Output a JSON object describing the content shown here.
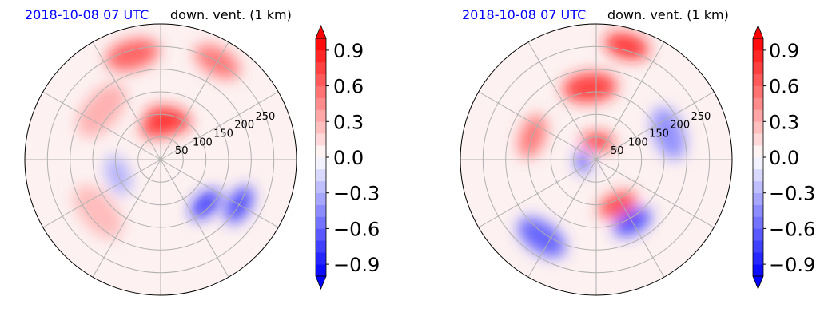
{
  "chart_data": [
    {
      "type": "heatmap",
      "projection": "polar",
      "title_date": "2018-10-08 07 UTC",
      "title_variable": "down. vent. (1 km)",
      "radial_tick_labels": [
        "50",
        "100",
        "150",
        "200",
        "250"
      ],
      "radial_ticks": [
        50,
        100,
        150,
        200,
        250
      ],
      "radial_max": 300,
      "theta_gridlines_deg": [
        0,
        30,
        60,
        90,
        120,
        150,
        180,
        210,
        240,
        270,
        300,
        330
      ],
      "grid": true,
      "colormap": "bwr",
      "color_min": "#0000ff",
      "color_mid": "#ffffff",
      "color_max": "#ff0000",
      "vmin": -1.0,
      "vmax": 1.0,
      "colorbar_ticks": [
        -0.9,
        -0.6,
        -0.3,
        0.0,
        0.3,
        0.6,
        0.9
      ],
      "colorbar_tick_labels": [
        "−0.9",
        "−0.6",
        "−0.3",
        "0.0",
        "0.3",
        "0.6",
        "0.9"
      ],
      "colorbar_extend": "both",
      "field_features": [
        {
          "theta_deg": 80,
          "r": 90,
          "spread": 50,
          "value": 0.9
        },
        {
          "theta_deg": 95,
          "r": 70,
          "spread": 40,
          "value": 0.8
        },
        {
          "theta_deg": 105,
          "r": 240,
          "spread": 60,
          "value": 0.7
        },
        {
          "theta_deg": 60,
          "r": 250,
          "spread": 55,
          "value": 0.6
        },
        {
          "theta_deg": 140,
          "r": 170,
          "spread": 70,
          "value": 0.35
        },
        {
          "theta_deg": 220,
          "r": 180,
          "spread": 70,
          "value": 0.3
        },
        {
          "theta_deg": 315,
          "r": 140,
          "spread": 40,
          "value": -0.9
        },
        {
          "theta_deg": 330,
          "r": 200,
          "spread": 45,
          "value": -0.8
        },
        {
          "theta_deg": 200,
          "r": 100,
          "spread": 45,
          "value": -0.35
        }
      ]
    },
    {
      "type": "heatmap",
      "projection": "polar",
      "title_date": "2018-10-08 07 UTC",
      "title_variable": "down. vent. (1 km)",
      "radial_tick_labels": [
        "50",
        "100",
        "150",
        "200",
        "250"
      ],
      "radial_ticks": [
        50,
        100,
        150,
        200,
        250
      ],
      "radial_max": 300,
      "theta_gridlines_deg": [
        0,
        30,
        60,
        90,
        120,
        150,
        180,
        210,
        240,
        270,
        300,
        330
      ],
      "grid": true,
      "colormap": "bwr",
      "color_min": "#0000ff",
      "color_mid": "#ffffff",
      "color_max": "#ff0000",
      "vmin": -1.0,
      "vmax": 1.0,
      "colorbar_ticks": [
        -0.9,
        -0.6,
        -0.3,
        0.0,
        0.3,
        0.6,
        0.9
      ],
      "colorbar_tick_labels": [
        "−0.9",
        "−0.6",
        "−0.3",
        "0.0",
        "0.3",
        "0.6",
        "0.9"
      ],
      "colorbar_extend": "both",
      "field_features": [
        {
          "theta_deg": 85,
          "r": 40,
          "spread": 35,
          "value": 0.9
        },
        {
          "theta_deg": 95,
          "r": 160,
          "spread": 60,
          "value": 0.85
        },
        {
          "theta_deg": 75,
          "r": 260,
          "spread": 50,
          "value": 0.9
        },
        {
          "theta_deg": 295,
          "r": 110,
          "spread": 45,
          "value": 0.8
        },
        {
          "theta_deg": 160,
          "r": 150,
          "spread": 50,
          "value": 0.6
        },
        {
          "theta_deg": 300,
          "r": 160,
          "spread": 45,
          "value": -0.8
        },
        {
          "theta_deg": 235,
          "r": 210,
          "spread": 60,
          "value": -0.7
        },
        {
          "theta_deg": 190,
          "r": 30,
          "spread": 25,
          "value": -0.8
        },
        {
          "theta_deg": 20,
          "r": 170,
          "spread": 60,
          "value": -0.5
        }
      ]
    }
  ]
}
